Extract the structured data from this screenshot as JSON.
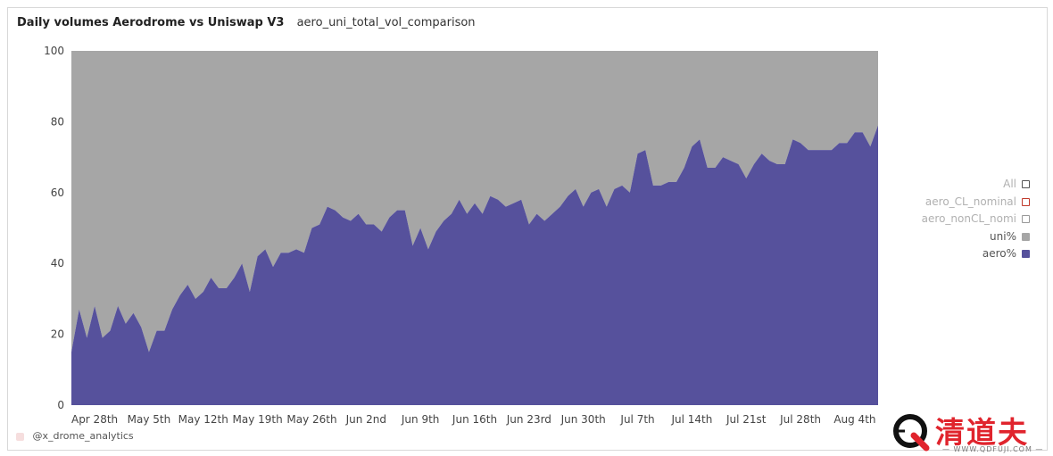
{
  "header": {
    "title": "Daily volumes Aerodrome vs Uniswap V3",
    "subtitle": "aero_uni_total_vol_comparison"
  },
  "legend": [
    {
      "label": "All",
      "swatch": "#ffffff",
      "border": "#555555",
      "text_color": "#b0b0b0"
    },
    {
      "label": "aero_CL_nominal",
      "swatch": "#ffffff",
      "border": "#c0392b",
      "text_color": "#b0b0b0"
    },
    {
      "label": "aero_nonCL_nomi",
      "swatch": "#ffffff",
      "border": "#999999",
      "text_color": "#b0b0b0"
    },
    {
      "label": "uni%",
      "swatch": "#a6a6a6",
      "border": "#a6a6a6",
      "text_color": "#555555"
    },
    {
      "label": "aero%",
      "swatch": "#56519c",
      "border": "#56519c",
      "text_color": "#555555"
    }
  ],
  "watermark": "@x_drome_analytics",
  "brand": {
    "name": "清道夫",
    "url": "— WWW.QDFUJI.COM —"
  },
  "colors": {
    "aero": "#56519c",
    "uni": "#a6a6a6",
    "axis_text": "#444444"
  },
  "chart_data": {
    "type": "area",
    "stacked": true,
    "ylim": [
      0,
      100
    ],
    "yticks": [
      0,
      20,
      40,
      60,
      80,
      100
    ],
    "xlabels": [
      "Apr 28th",
      "May 5th",
      "May 12th",
      "May 19th",
      "May 26th",
      "Jun 2nd",
      "Jun 9th",
      "Jun 16th",
      "Jun 23rd",
      "Jun 30th",
      "Jul 7th",
      "Jul 14th",
      "Jul 21st",
      "Jul 28th",
      "Aug 4th"
    ],
    "xlabel_start_index": 3,
    "xlabel_step": 7,
    "series": [
      {
        "name": "aero%",
        "color": "#56519c",
        "values": [
          15,
          27,
          19,
          28,
          19,
          21,
          28,
          23,
          26,
          22,
          15,
          21,
          21,
          27,
          31,
          34,
          30,
          32,
          36,
          33,
          33,
          36,
          40,
          32,
          42,
          44,
          39,
          43,
          43,
          44,
          43,
          50,
          51,
          56,
          55,
          53,
          52,
          54,
          51,
          51,
          49,
          53,
          55,
          55,
          45,
          50,
          44,
          49,
          52,
          54,
          58,
          54,
          57,
          54,
          59,
          58,
          56,
          57,
          58,
          51,
          54,
          52,
          54,
          56,
          59,
          61,
          56,
          60,
          61,
          56,
          61,
          62,
          60,
          71,
          72,
          62,
          62,
          63,
          63,
          67,
          73,
          75,
          67,
          67,
          70,
          69,
          68,
          64,
          68,
          71,
          69,
          68,
          68,
          75,
          74,
          72,
          72,
          72,
          72,
          74,
          74,
          77,
          77,
          73,
          79
        ]
      },
      {
        "name": "uni%",
        "color": "#a6a6a6",
        "values": "remainder to 100"
      }
    ]
  }
}
